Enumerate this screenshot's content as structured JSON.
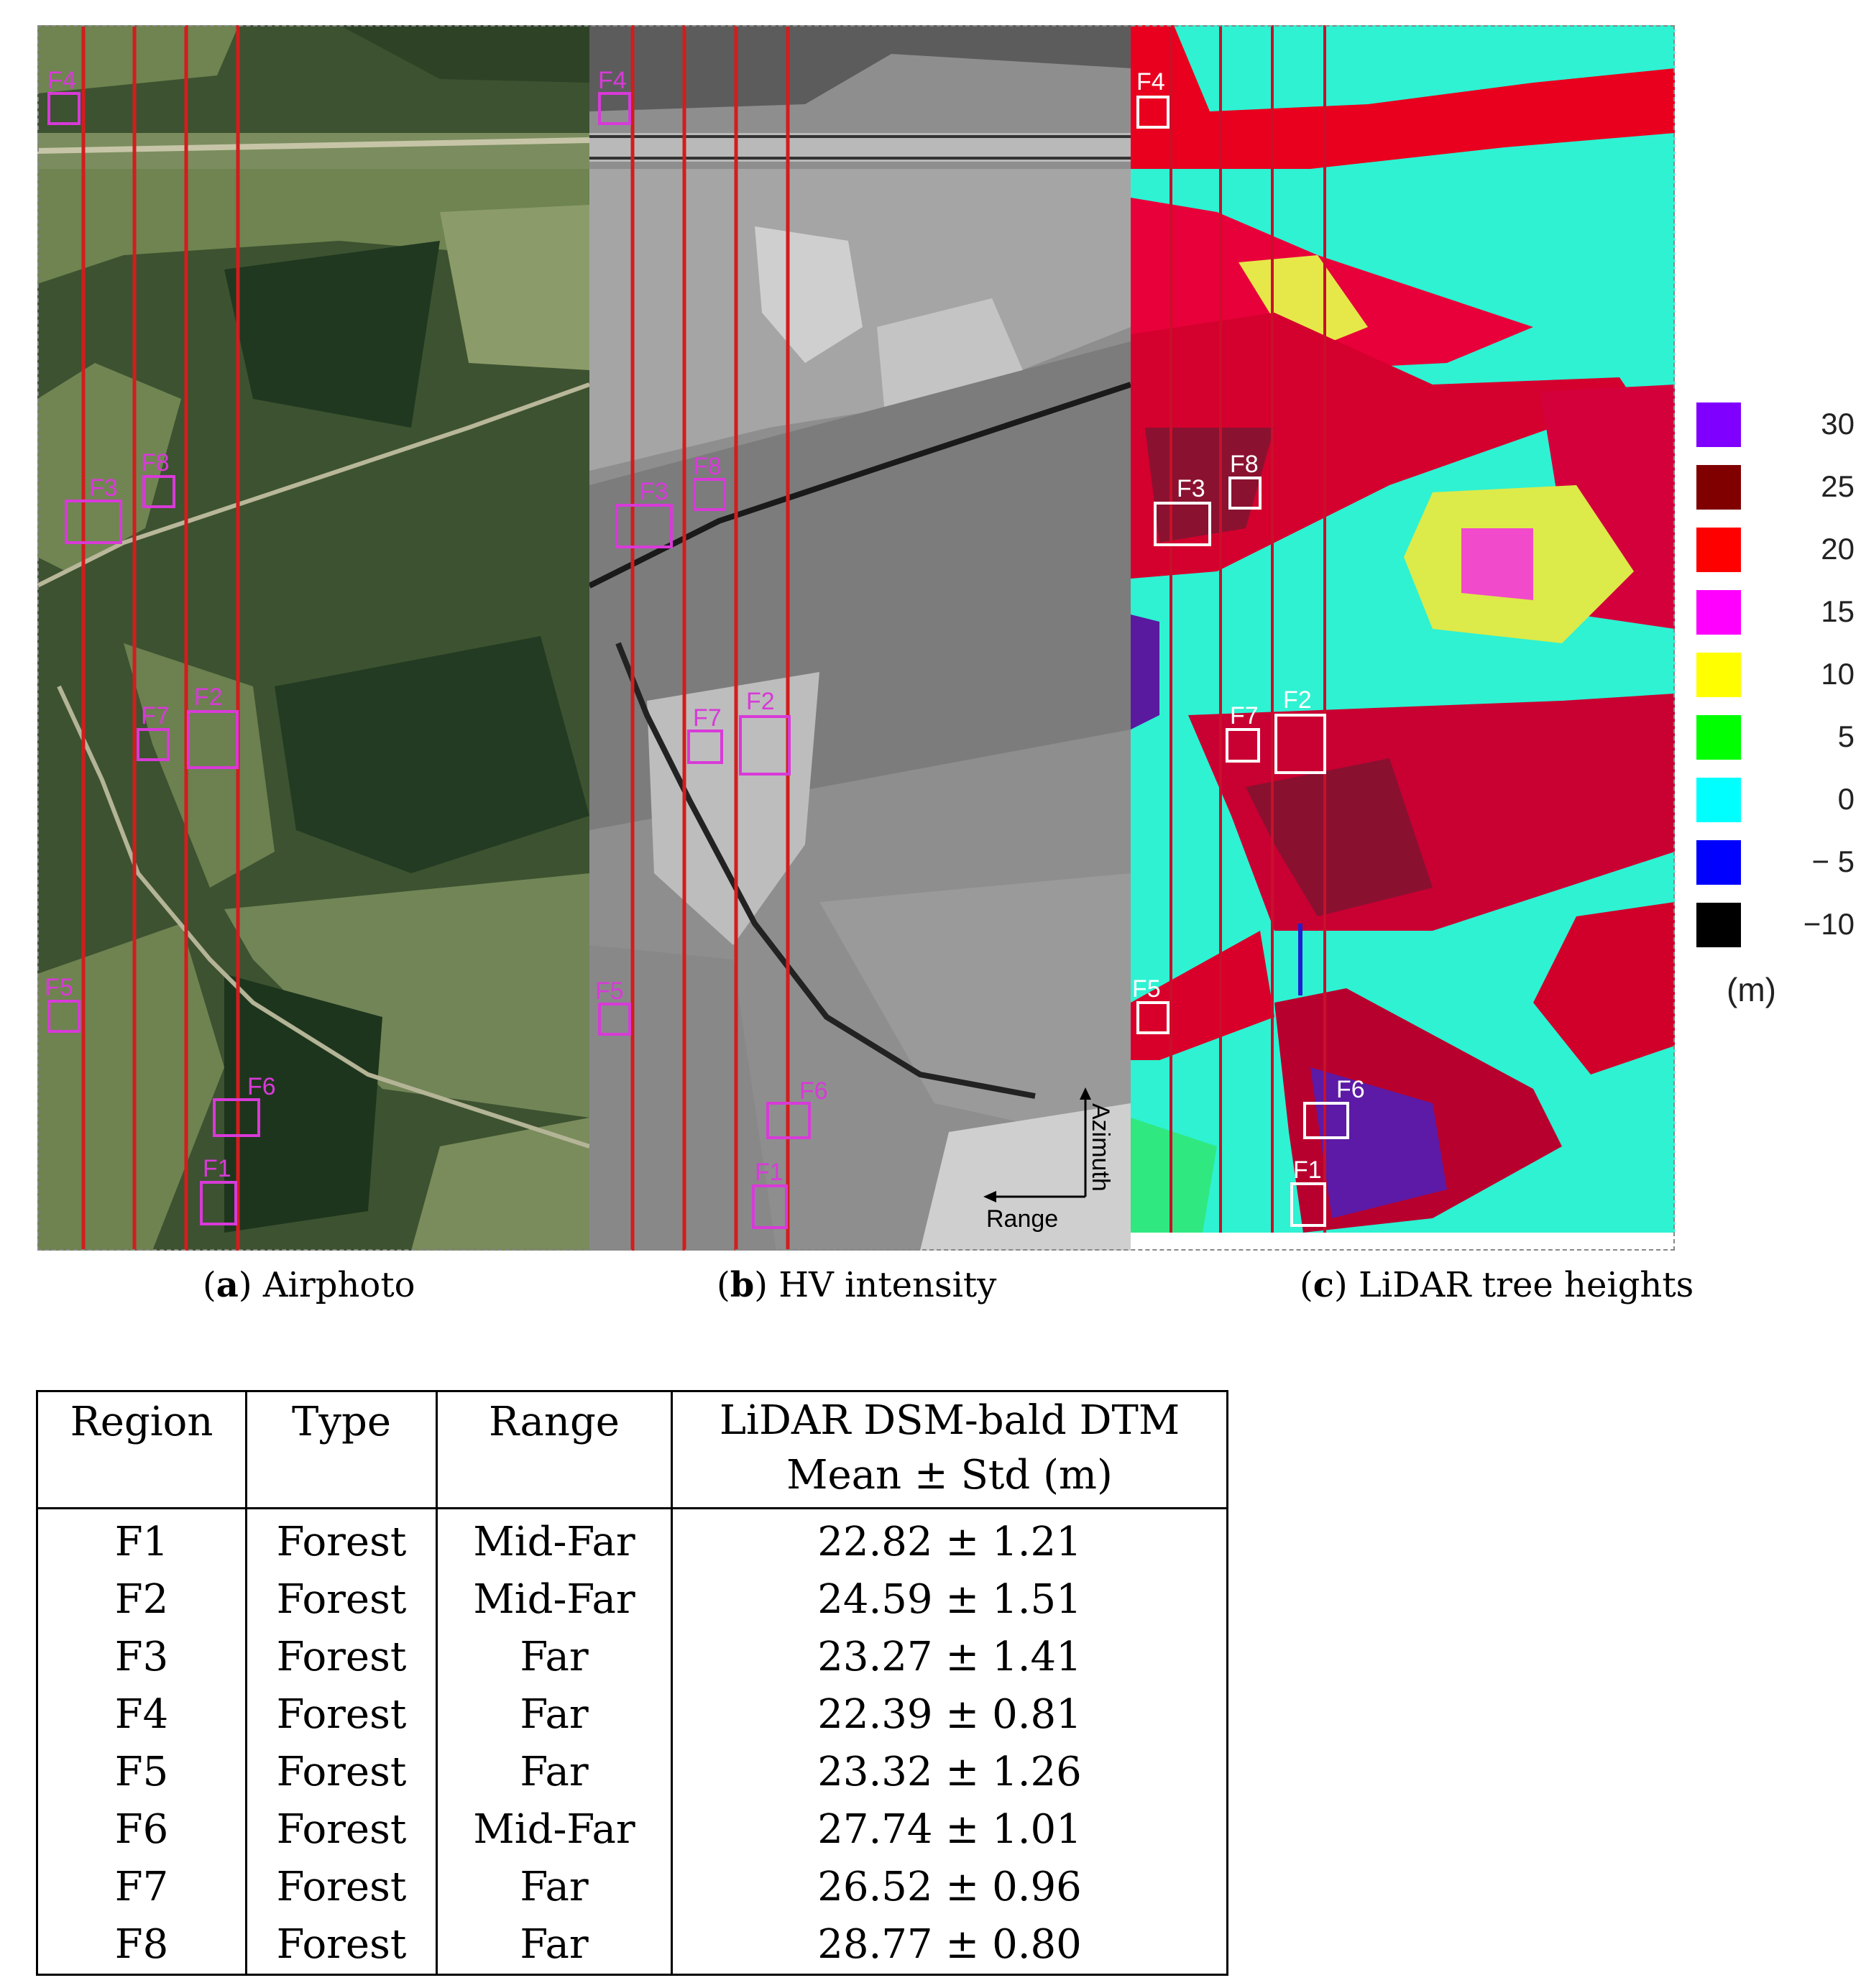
{
  "panels": {
    "a": {
      "caption_tag": "a",
      "caption_text": "Airphoto",
      "roi_labels": [
        "F4",
        "F3",
        "F8",
        "F7",
        "F2",
        "F5",
        "F6",
        "F1"
      ]
    },
    "b": {
      "caption_tag": "b",
      "caption_text": "HV intensity",
      "roi_labels": [
        "F4",
        "F3",
        "F8",
        "F7",
        "F2",
        "F5",
        "F6",
        "F1"
      ],
      "azimuth_label": "Azimuth",
      "range_label": "Range"
    },
    "c": {
      "caption_tag": "c",
      "caption_text": "LiDAR tree heights",
      "roi_labels": [
        "F4",
        "F3",
        "F8",
        "F7",
        "F2",
        "F5",
        "F6",
        "F1"
      ]
    }
  },
  "colorbar": {
    "entries": [
      {
        "label": "30",
        "color": "#8000ff"
      },
      {
        "label": "25",
        "color": "#800000"
      },
      {
        "label": "20",
        "color": "#ff0000"
      },
      {
        "label": "15",
        "color": "#ff00ff"
      },
      {
        "label": "10",
        "color": "#ffff00"
      },
      {
        "label": "5",
        "color": "#00ff00"
      },
      {
        "label": "0",
        "color": "#00ffff"
      },
      {
        "label": "− 5",
        "color": "#0000ff"
      },
      {
        "label": "−10",
        "color": "#000000"
      }
    ],
    "unit": "(m)"
  },
  "table": {
    "headers": {
      "region": "Region",
      "type": "Type",
      "range": "Range",
      "lidar_line1": "LiDAR DSM-bald DTM",
      "lidar_line2": "Mean ± Std (m)"
    },
    "rows": [
      {
        "region": "F1",
        "type": "Forest",
        "range": "Mid-Far",
        "value": "22.82 ± 1.21"
      },
      {
        "region": "F2",
        "type": "Forest",
        "range": "Mid-Far",
        "value": "24.59 ± 1.51"
      },
      {
        "region": "F3",
        "type": "Forest",
        "range": "Far",
        "value": "23.27 ± 1.41"
      },
      {
        "region": "F4",
        "type": "Forest",
        "range": "Far",
        "value": "22.39 ± 0.81"
      },
      {
        "region": "F5",
        "type": "Forest",
        "range": "Far",
        "value": "23.32 ± 1.26"
      },
      {
        "region": "F6",
        "type": "Forest",
        "range": "Mid-Far",
        "value": "27.74 ± 1.01"
      },
      {
        "region": "F7",
        "type": "Forest",
        "range": "Far",
        "value": "26.52 ± 0.96"
      },
      {
        "region": "F8",
        "type": "Forest",
        "range": "Far",
        "value": "28.77 ± 0.80"
      }
    ]
  }
}
